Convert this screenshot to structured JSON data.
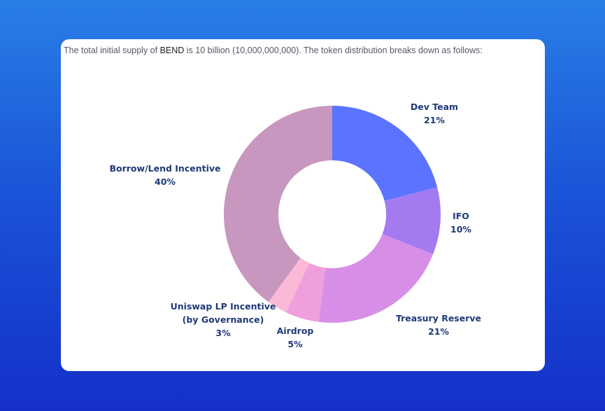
{
  "intro": {
    "prefix": "The total initial supply of ",
    "token": "BEND",
    "suffix": " is 10 billion (10,000,000,000). The token distribution breaks down as follows:"
  },
  "chart_data": {
    "type": "pie",
    "donut": true,
    "unit": "%",
    "slices": [
      {
        "label": "Dev Team",
        "value": 21,
        "value_label": "21%",
        "color": "#5b73ff"
      },
      {
        "label": "IFO",
        "value": 10,
        "value_label": "10%",
        "color": "#a37af0"
      },
      {
        "label": "Treasury Reserve",
        "value": 21,
        "value_label": "21%",
        "color": "#d78ee6"
      },
      {
        "label": "Airdrop",
        "value": 5,
        "value_label": "5%",
        "color": "#ef9fdc"
      },
      {
        "label": "Uniswap LP Incentive (by Governance)",
        "label_lines": [
          "Uniswap LP Incentive",
          "(by Governance)"
        ],
        "value": 3,
        "value_label": "3%",
        "color": "#fbb9d8"
      },
      {
        "label": "Borrow/Lend Incentive",
        "value": 40,
        "value_label": "40%",
        "color": "#c797bf"
      }
    ]
  }
}
